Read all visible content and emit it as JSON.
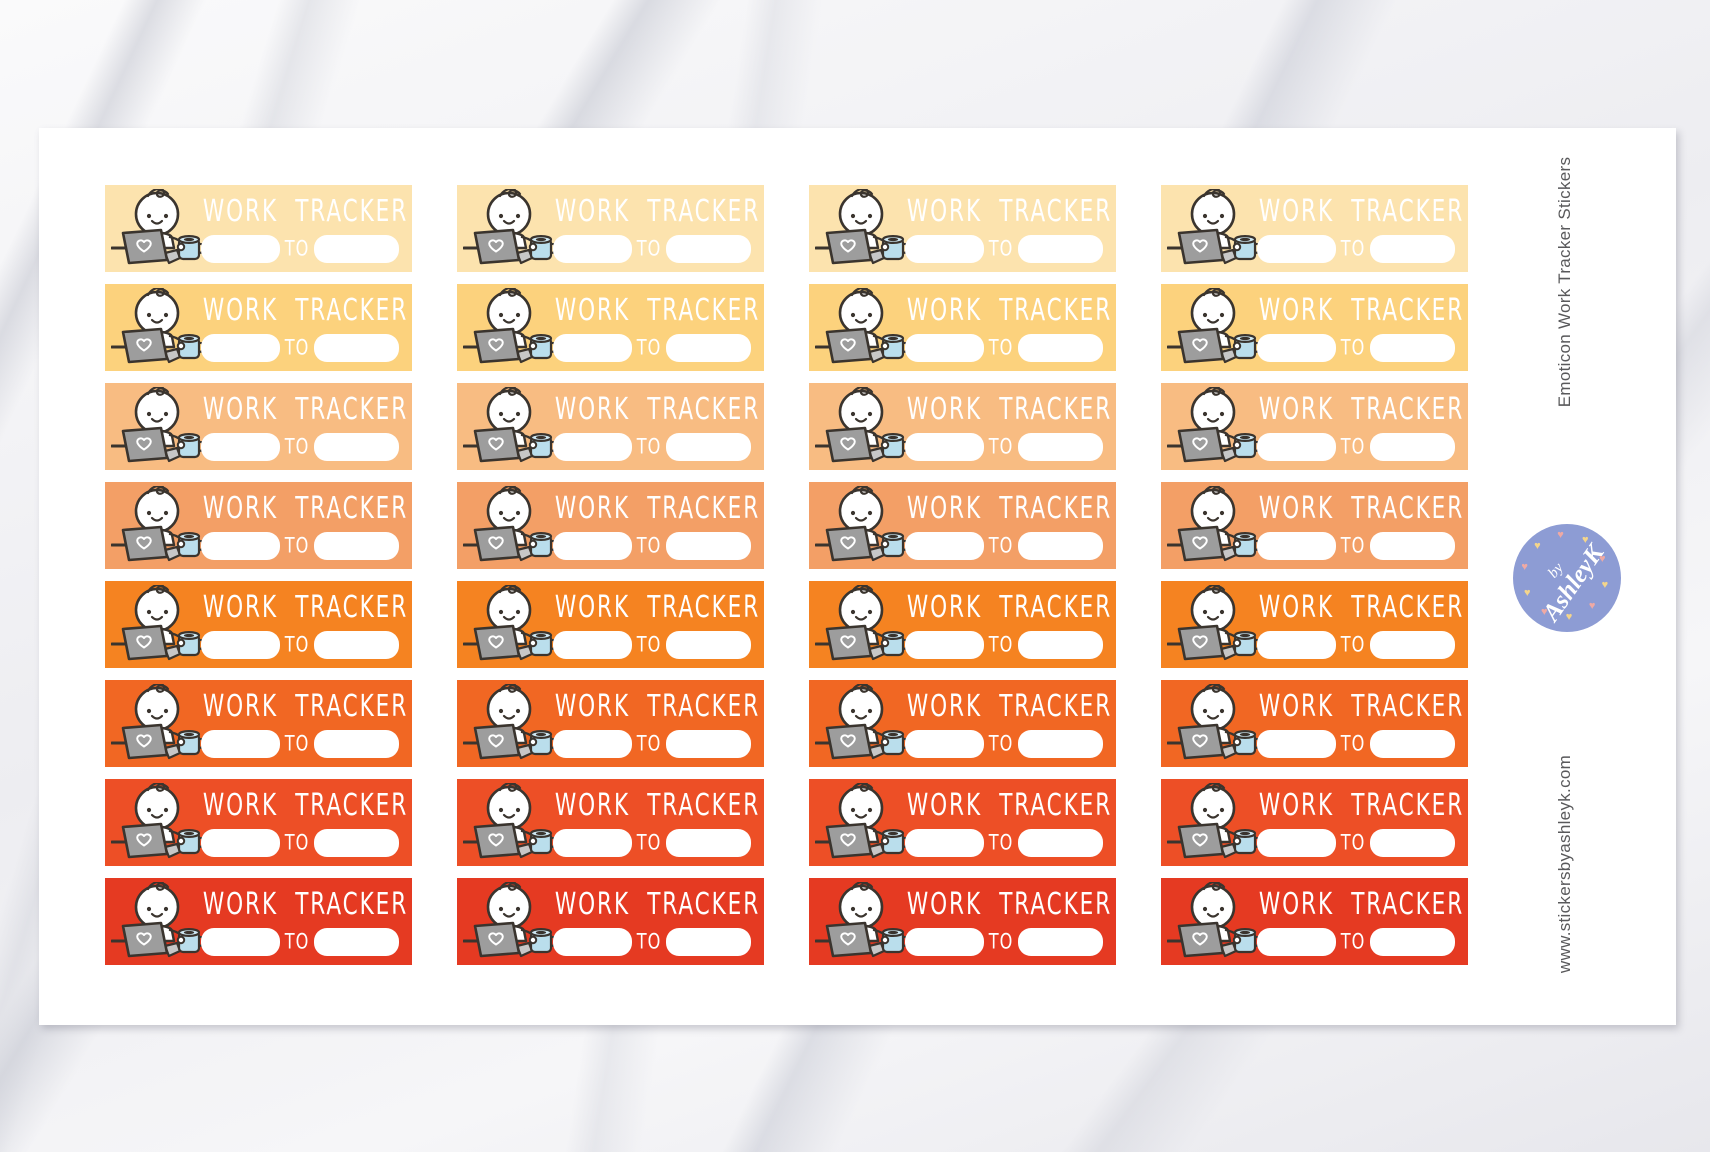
{
  "product": {
    "side_label_top": "Emoticon Work Tracker Stickers",
    "side_label_bottom": "www.stickersbyashleyk.com",
    "side_text_color": "#59595b"
  },
  "sticker": {
    "title": "WORK TRACKER",
    "to_label": "TO",
    "text_color": "#ffffff",
    "field_color": "#ffffff",
    "character": "emoticon-working-at-laptop-with-coffee",
    "outline_color": "#3a342e",
    "laptop_color": "#9d9d9d",
    "laptop_base_color": "#c7c7c7",
    "mug_color": "#badeec"
  },
  "sheet_grid": {
    "columns": 4,
    "rows": 8,
    "row_colors": [
      "#fce3ae",
      "#fcd27d",
      "#f8bc82",
      "#f39f66",
      "#f58321",
      "#f16723",
      "#ed4f26",
      "#e53a22"
    ]
  },
  "logo": {
    "by": "by",
    "name": "AshleyK",
    "circle_color": "#8d9cd4",
    "text_color": "#ffffff",
    "heart_glyph": "♥",
    "heart_colors": [
      "#f4d58b",
      "#efa9a4"
    ]
  }
}
